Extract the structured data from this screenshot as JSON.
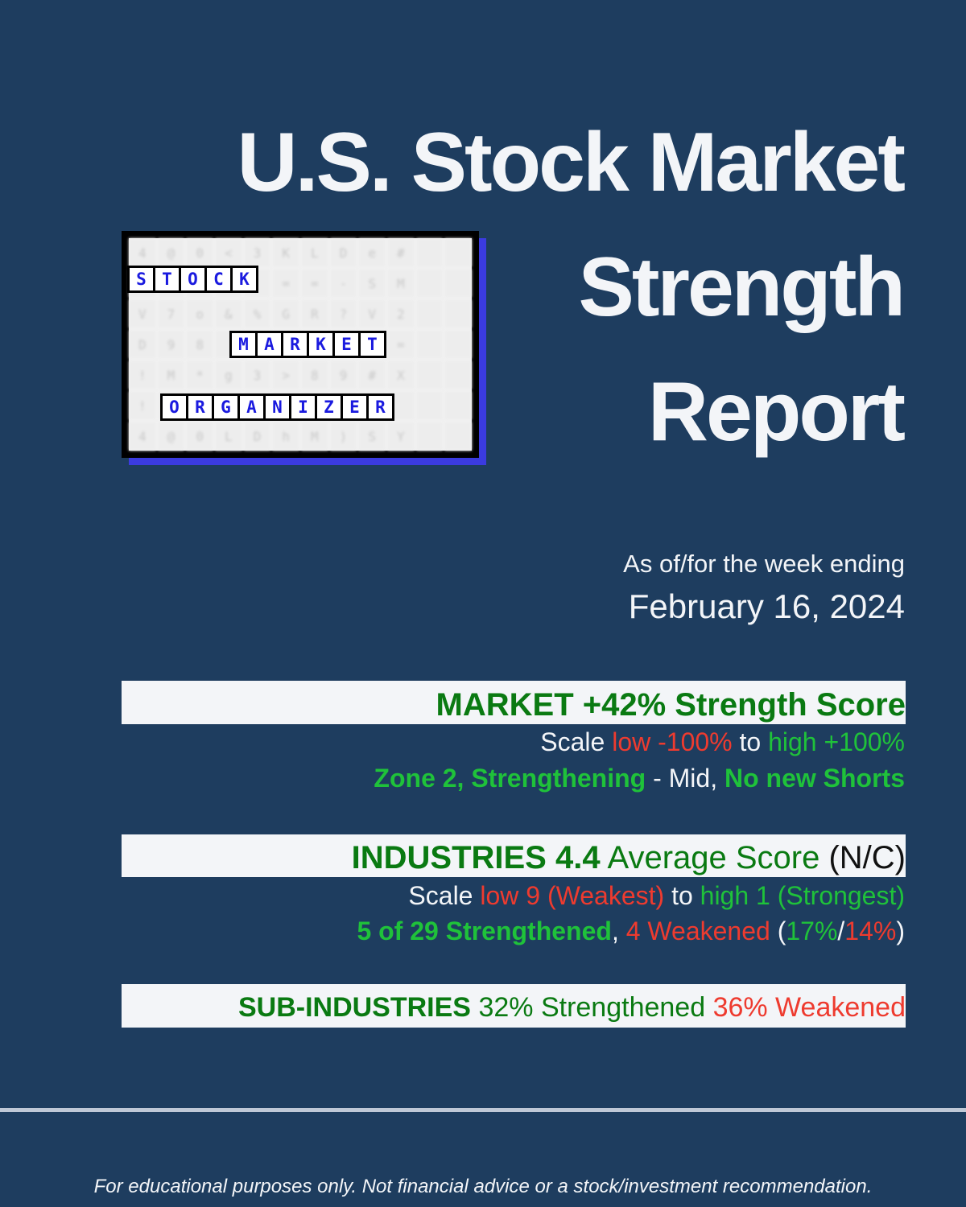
{
  "title": {
    "line1": "U.S. Stock Market",
    "line2": "Strength",
    "line3": "Report"
  },
  "logo": {
    "rows": [
      [
        "4",
        "@",
        "0",
        "<",
        "3",
        "K",
        "L",
        "D",
        "e",
        "#",
        "",
        ""
      ],
      [
        "",
        "",
        "",
        "",
        "",
        "=",
        "=",
        "-",
        "S",
        "M",
        "",
        ""
      ],
      [
        "V",
        "7",
        "o",
        "&",
        "%",
        "G",
        "R",
        "?",
        "V",
        "2",
        "",
        ""
      ],
      [
        "D",
        "9",
        "8",
        "",
        "",
        "",
        "",
        "",
        "",
        "=",
        "",
        ""
      ],
      [
        "!",
        "M",
        "*",
        "g",
        "3",
        ">",
        "8",
        "9",
        "#",
        "X",
        "",
        ""
      ],
      [
        "!",
        "",
        "",
        "",
        "",
        "",
        "",
        "",
        "",
        "",
        "",
        ""
      ],
      [
        "4",
        "@",
        "0",
        "L",
        "D",
        "h",
        "M",
        ")",
        "S",
        "Y",
        "",
        ""
      ]
    ],
    "word1": [
      "S",
      "T",
      "O",
      "C",
      "K"
    ],
    "word2": [
      "M",
      "A",
      "R",
      "K",
      "E",
      "T"
    ],
    "word3": [
      "O",
      "R",
      "G",
      "A",
      "N",
      "I",
      "Z",
      "E",
      "R"
    ]
  },
  "as_of": {
    "label": "As of/for the week ending",
    "date": "February 16, 2024"
  },
  "market": {
    "heading": "MARKET +42% Strength Score",
    "scale_prefix": "Scale ",
    "scale_low": "low -100%",
    "scale_to": " to ",
    "scale_high": "high +100%",
    "zone": "Zone 2, Strengthening",
    "zone_sep": " - Mid, ",
    "zone_action": "No new Shorts"
  },
  "industries": {
    "heading_bold": "INDUSTRIES 4.4",
    "heading_rest": " Average Score ",
    "heading_nc": "(N/C)",
    "scale_prefix": "Scale ",
    "scale_low": "low 9 (Weakest)",
    "scale_to": " to ",
    "scale_high": "high 1 (Strongest)",
    "strengthened": "5 of 29 Strengthened",
    "comma": ", ",
    "weakened": "4 Weakened",
    "paren_open": " (",
    "pct_strong": "17%",
    "slash": "/",
    "pct_weak": "14%",
    "paren_close": ")"
  },
  "sub_industries": {
    "label": "SUB-INDUSTRIES",
    "strengthened": " 32% Strengthened ",
    "weakened": "36% Weakened"
  },
  "footer": "For educational purposes only. Not financial advice or a stock/investment recommendation."
}
